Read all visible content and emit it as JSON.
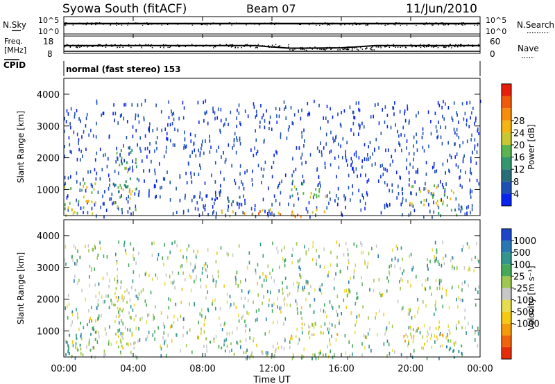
{
  "header": {
    "station": "Syowa South (fitACF)",
    "beam": "Beam 07",
    "date": "11/Jun/2010"
  },
  "top_panels": {
    "nsky": {
      "label": "N.Sky",
      "tick_top": "10^5",
      "tick_bottom": "10^0"
    },
    "nsearch": {
      "label": "N.Search",
      "tick_top": "10^5",
      "tick_bottom": "10^0"
    },
    "freq": {
      "label_line1": "Freq.",
      "label_line2": "[MHz]",
      "tick_top": "18",
      "tick_bottom": "8"
    },
    "nave": {
      "label": "Nave",
      "tick_top": "60",
      "tick_bottom": "0"
    },
    "cpid": {
      "label": "CPID",
      "text": "normal (fast stereo) 153"
    }
  },
  "axes": {
    "ylabel": "Slant Range [km]",
    "xlabel": "Time UT",
    "xticks": [
      "00:00",
      "04:00",
      "08:00",
      "12:00",
      "16:00",
      "20:00",
      "00:00"
    ],
    "yticks": [
      "1000",
      "2000",
      "3000",
      "4000"
    ]
  },
  "colorbars": {
    "power": {
      "label": "Power [dB]",
      "ticks": [
        "4",
        "8",
        "12",
        "16",
        "20",
        "24",
        "28"
      ],
      "colors": [
        "#0a24f0",
        "#1e50b4",
        "#286e78",
        "#32966e",
        "#5ab450",
        "#c8c832",
        "#f5b414",
        "#f58c0a",
        "#f05a0a",
        "#e61e0a"
      ]
    },
    "velocity": {
      "label": "Velocity [m s⁻¹]",
      "ticks": [
        "1000",
        "500",
        "100",
        "25",
        "-25",
        "-100",
        "-500",
        "-1000"
      ],
      "colors": [
        "#1e46c8",
        "#2878b4",
        "#32968c",
        "#46aa5a",
        "#a0c850",
        "#c8c8c8",
        "#e6dc50",
        "#f5c814",
        "#f59b0a",
        "#f0640a",
        "#e62d0a"
      ]
    }
  },
  "chart_data": [
    {
      "type": "line",
      "title": "N.Sky",
      "x": [
        0,
        24
      ],
      "series": [
        {
          "values": [
            10000,
            10000
          ]
        }
      ],
      "ylim": [
        1,
        100000
      ],
      "log": true
    },
    {
      "type": "scatter",
      "title": "Freq.",
      "ylabel": "[MHz]",
      "ylim": [
        8,
        18
      ],
      "x": [
        0,
        4,
        8,
        11,
        13,
        14,
        16,
        18,
        22,
        24
      ],
      "series": [
        {
          "values": [
            12.5,
            12.5,
            12.5,
            12.5,
            11.0,
            11.0,
            11.2,
            12.5,
            12.5,
            12.5
          ]
        }
      ]
    },
    {
      "type": "heatmap",
      "title": "Power [dB]",
      "xlabel": "Time UT",
      "ylabel": "Slant Range [km]",
      "xlim": [
        0,
        24
      ],
      "ylim": [
        180,
        4500
      ],
      "regions": [
        {
          "t0": 0.0,
          "t1": 1.8,
          "r0": 200,
          "r1": 1300,
          "value": 18
        },
        {
          "t0": 2.8,
          "t1": 4.2,
          "r0": 400,
          "r1": 2400,
          "value": 14
        },
        {
          "t0": 3.4,
          "t1": 4.2,
          "r0": 800,
          "r1": 1100,
          "value": 22
        },
        {
          "t0": 8.0,
          "t1": 10.5,
          "r0": 500,
          "r1": 800,
          "value": 6
        },
        {
          "t0": 9.0,
          "t1": 15.0,
          "r0": 180,
          "r1": 420,
          "value": 24
        },
        {
          "t0": 13.0,
          "t1": 15.8,
          "r0": 800,
          "r1": 1300,
          "value": 16
        },
        {
          "t0": 19.5,
          "t1": 22.5,
          "r0": 500,
          "r1": 1200,
          "value": 18
        },
        {
          "t0": 21.5,
          "t1": 23.0,
          "r0": 200,
          "r1": 600,
          "value": 10
        }
      ]
    },
    {
      "type": "heatmap",
      "title": "Velocity [m s⁻¹]",
      "xlabel": "Time UT",
      "ylabel": "Slant Range [km]",
      "xlim": [
        0,
        24
      ],
      "ylim": [
        180,
        4500
      ],
      "regions": [
        {
          "t0": 0.0,
          "t1": 1.8,
          "r0": 200,
          "r1": 1300,
          "value": 100
        },
        {
          "t0": 2.8,
          "t1": 4.2,
          "r0": 400,
          "r1": 2400,
          "value": -100
        },
        {
          "t0": 8.0,
          "t1": 10.5,
          "r0": 500,
          "r1": 800,
          "value": 25
        },
        {
          "t0": 9.0,
          "t1": 15.0,
          "r0": 180,
          "r1": 420,
          "value": -25
        },
        {
          "t0": 13.0,
          "t1": 15.8,
          "r0": 800,
          "r1": 1300,
          "value": -500
        },
        {
          "t0": 19.5,
          "t1": 22.5,
          "r0": 500,
          "r1": 1200,
          "value": -500
        },
        {
          "t0": 21.5,
          "t1": 23.0,
          "r0": 200,
          "r1": 600,
          "value": 100
        }
      ]
    }
  ]
}
